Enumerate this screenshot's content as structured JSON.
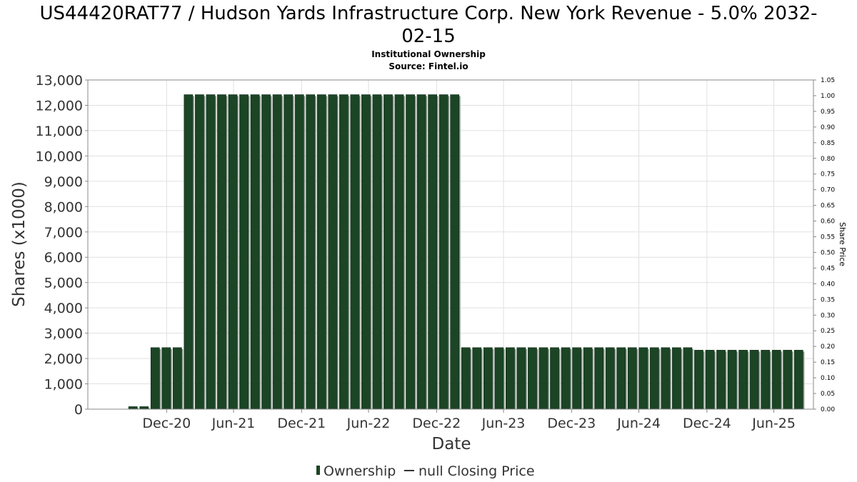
{
  "title_line1": "US44420RAT77 / Hudson Yards Infrastructure Corp. New York Revenue - 5.0% 2032-",
  "title_line2": "02-15",
  "subtitle_line1": "Institutional Ownership",
  "subtitle_line2": "Source: Fintel.io",
  "colors": {
    "bar": "#1b4525",
    "bar_edge": "#0f2a16",
    "bar_shadow": "#8f9e91",
    "grid": "#e0e0e0",
    "axis": "#888888"
  },
  "legend": {
    "ownership_label": "Ownership",
    "price_label": "null Closing Price"
  },
  "chart_data": {
    "type": "bar",
    "title": "US44420RAT77 / Hudson Yards Infrastructure Corp. New York Revenue - 5.0% 2032-02-15",
    "subtitle": "Institutional Ownership",
    "xlabel": "Date",
    "ylabel": "Shares (x1000)",
    "y2label": "Share Price",
    "ylim": [
      0,
      13000
    ],
    "y2lim": [
      0,
      1.05
    ],
    "grid": true,
    "legend_position": "bottom",
    "yticks": [
      "0",
      "1,000",
      "2,000",
      "3,000",
      "4,000",
      "5,000",
      "6,000",
      "7,000",
      "8,000",
      "9,000",
      "10,000",
      "11,000",
      "12,000",
      "13,000"
    ],
    "ytick_values": [
      0,
      1000,
      2000,
      3000,
      4000,
      5000,
      6000,
      7000,
      8000,
      9000,
      10000,
      11000,
      12000,
      13000
    ],
    "y2ticks": [
      "0.00",
      "0.05",
      "0.10",
      "0.15",
      "0.20",
      "0.25",
      "0.30",
      "0.35",
      "0.40",
      "0.45",
      "0.50",
      "0.55",
      "0.60",
      "0.65",
      "0.70",
      "0.75",
      "0.80",
      "0.85",
      "0.90",
      "0.95",
      "1.00",
      "1.05"
    ],
    "y2tick_values": [
      0,
      0.05,
      0.1,
      0.15,
      0.2,
      0.25,
      0.3,
      0.35,
      0.4,
      0.45,
      0.5,
      0.55,
      0.6,
      0.65,
      0.7,
      0.75,
      0.8,
      0.85,
      0.9,
      0.95,
      1.0,
      1.05
    ],
    "x_range": [
      "2020-06-01",
      "2025-10-15"
    ],
    "xticks": [
      "Dec-20",
      "Jun-21",
      "Dec-21",
      "Jun-22",
      "Dec-22",
      "Jun-23",
      "Dec-23",
      "Jun-24",
      "Dec-24",
      "Jun-25"
    ],
    "xtick_dates": [
      "2020-12-31",
      "2021-06-30",
      "2021-12-31",
      "2022-06-30",
      "2022-12-31",
      "2023-06-30",
      "2023-12-31",
      "2024-06-30",
      "2024-12-31",
      "2025-06-30"
    ],
    "series": [
      {
        "name": "Ownership",
        "x": [
          "2020-10-01",
          "2020-10-31",
          "2020-11-30",
          "2020-12-30",
          "2021-01-29",
          "2021-02-28",
          "2021-03-30",
          "2021-04-29",
          "2021-05-29",
          "2021-06-28",
          "2021-07-28",
          "2021-08-27",
          "2021-09-26",
          "2021-10-26",
          "2021-11-25",
          "2021-12-25",
          "2022-01-24",
          "2022-02-23",
          "2022-03-25",
          "2022-04-24",
          "2022-05-24",
          "2022-06-23",
          "2022-07-23",
          "2022-08-22",
          "2022-09-21",
          "2022-10-21",
          "2022-11-20",
          "2022-12-20",
          "2023-01-19",
          "2023-02-18",
          "2023-03-20",
          "2023-04-19",
          "2023-05-19",
          "2023-06-18",
          "2023-07-18",
          "2023-08-17",
          "2023-09-16",
          "2023-10-16",
          "2023-11-15",
          "2023-12-15",
          "2024-01-14",
          "2024-02-13",
          "2024-03-14",
          "2024-04-13",
          "2024-05-13",
          "2024-06-12",
          "2024-07-12",
          "2024-08-11",
          "2024-09-10",
          "2024-10-10",
          "2024-11-09",
          "2024-12-09",
          "2025-01-08",
          "2025-02-07",
          "2025-03-09",
          "2025-04-08",
          "2025-05-08",
          "2025-06-07",
          "2025-07-07",
          "2025-08-06",
          "2025-09-05"
        ],
        "values": [
          100,
          100,
          2430,
          2430,
          2430,
          12420,
          12420,
          12420,
          12420,
          12420,
          12420,
          12420,
          12420,
          12420,
          12420,
          12420,
          12420,
          12420,
          12420,
          12420,
          12420,
          12420,
          12420,
          12420,
          12420,
          12420,
          12420,
          12420,
          12420,
          12420,
          2430,
          2430,
          2430,
          2430,
          2430,
          2430,
          2430,
          2430,
          2430,
          2430,
          2430,
          2430,
          2430,
          2430,
          2430,
          2430,
          2430,
          2430,
          2430,
          2430,
          2430,
          2330,
          2330,
          2330,
          2330,
          2330,
          2330,
          2330,
          2330,
          2330,
          2330
        ]
      }
    ]
  }
}
